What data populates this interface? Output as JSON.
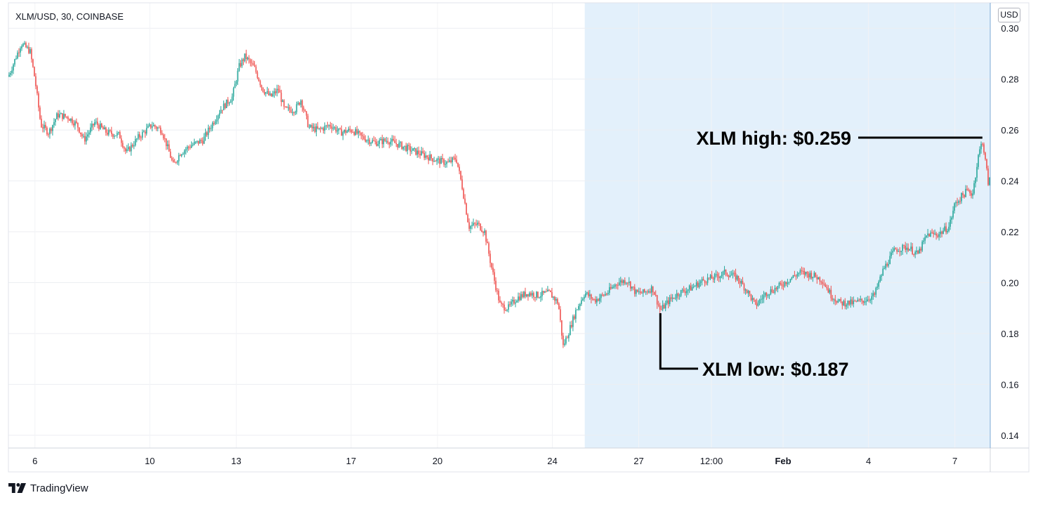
{
  "chart_header": {
    "title": "XLM/USD, 30, COINBASE"
  },
  "price_axis": {
    "currency": "USD"
  },
  "brand": {
    "name": "TradingView",
    "logo_icon": "tradingview-logo-icon"
  },
  "colors": {
    "up": "#26a69a",
    "down": "#ef5350",
    "highlight": "#e3f0fb",
    "annotation": "#000000"
  },
  "chart_data": {
    "type": "candlestick",
    "title": "XLM/USD, 30, COINBASE",
    "xlabel": "",
    "ylabel": "USD",
    "ylim": [
      0.135,
      0.31
    ],
    "yticks": [
      0.3,
      0.28,
      0.26,
      0.24,
      0.22,
      0.2,
      0.18,
      0.16,
      0.14
    ],
    "ytick_labels": [
      "0.30",
      "0.28",
      "0.26",
      "0.24",
      "0.22",
      "0.20",
      "0.18",
      "0.16",
      "0.14"
    ],
    "xlim": [
      0,
      100
    ],
    "xticks": [
      {
        "label": "6",
        "x": 2.7,
        "bold": false
      },
      {
        "label": "10",
        "x": 14.4,
        "bold": false
      },
      {
        "label": "13",
        "x": 23.2,
        "bold": false
      },
      {
        "label": "17",
        "x": 34.9,
        "bold": false
      },
      {
        "label": "20",
        "x": 43.7,
        "bold": false
      },
      {
        "label": "24",
        "x": 55.4,
        "bold": false
      },
      {
        "label": "27",
        "x": 64.2,
        "bold": false
      },
      {
        "label": "12:00",
        "x": 71.6,
        "bold": false
      },
      {
        "label": "Feb",
        "x": 78.9,
        "bold": true
      },
      {
        "label": "4",
        "x": 87.6,
        "bold": false
      },
      {
        "label": "7",
        "x": 96.4,
        "bold": false
      }
    ],
    "highlight_range": [
      58.7,
      100
    ],
    "grid": true,
    "legend": "none",
    "series": [
      {
        "points": [
          [
            0,
            0.281
          ],
          [
            0.8,
            0.289
          ],
          [
            1.3,
            0.294
          ],
          [
            2.2,
            0.291
          ],
          [
            2.7,
            0.28
          ],
          [
            3.3,
            0.262
          ],
          [
            4.1,
            0.259
          ],
          [
            5.0,
            0.266
          ],
          [
            6.1,
            0.265
          ],
          [
            7.0,
            0.262
          ],
          [
            7.7,
            0.256
          ],
          [
            8.8,
            0.263
          ],
          [
            10.0,
            0.259
          ],
          [
            11.3,
            0.258
          ],
          [
            12.0,
            0.251
          ],
          [
            13.2,
            0.257
          ],
          [
            14.6,
            0.262
          ],
          [
            15.6,
            0.26
          ],
          [
            16.3,
            0.252
          ],
          [
            16.8,
            0.246
          ],
          [
            17.5,
            0.251
          ],
          [
            18.6,
            0.254
          ],
          [
            19.8,
            0.256
          ],
          [
            20.7,
            0.262
          ],
          [
            21.6,
            0.268
          ],
          [
            22.8,
            0.273
          ],
          [
            23.5,
            0.285
          ],
          [
            24.1,
            0.289
          ],
          [
            25.1,
            0.284
          ],
          [
            25.9,
            0.276
          ],
          [
            26.7,
            0.273
          ],
          [
            27.5,
            0.276
          ],
          [
            28.1,
            0.268
          ],
          [
            29.2,
            0.268
          ],
          [
            29.8,
            0.272
          ],
          [
            30.6,
            0.261
          ],
          [
            31.6,
            0.26
          ],
          [
            32.8,
            0.262
          ],
          [
            33.8,
            0.259
          ],
          [
            35.0,
            0.26
          ],
          [
            36.1,
            0.257
          ],
          [
            37.4,
            0.255
          ],
          [
            38.6,
            0.256
          ],
          [
            39.9,
            0.254
          ],
          [
            41.1,
            0.252
          ],
          [
            42.4,
            0.25
          ],
          [
            43.7,
            0.248
          ],
          [
            44.8,
            0.247
          ],
          [
            45.6,
            0.249
          ],
          [
            46.2,
            0.238
          ],
          [
            46.9,
            0.222
          ],
          [
            47.8,
            0.223
          ],
          [
            48.5,
            0.22
          ],
          [
            49.1,
            0.208
          ],
          [
            49.6,
            0.199
          ],
          [
            50.1,
            0.191
          ],
          [
            50.9,
            0.19
          ],
          [
            51.8,
            0.194
          ],
          [
            52.9,
            0.196
          ],
          [
            53.9,
            0.195
          ],
          [
            55.1,
            0.196
          ],
          [
            56.0,
            0.192
          ],
          [
            56.5,
            0.175
          ],
          [
            57.1,
            0.181
          ],
          [
            57.8,
            0.189
          ],
          [
            58.7,
            0.196
          ],
          [
            59.7,
            0.193
          ],
          [
            61.0,
            0.196
          ],
          [
            62.0,
            0.2
          ],
          [
            63.0,
            0.201
          ],
          [
            63.9,
            0.196
          ],
          [
            64.7,
            0.196
          ],
          [
            65.6,
            0.198
          ],
          [
            66.4,
            0.189
          ],
          [
            67.3,
            0.193
          ],
          [
            68.3,
            0.196
          ],
          [
            69.6,
            0.198
          ],
          [
            70.8,
            0.201
          ],
          [
            71.9,
            0.202
          ],
          [
            73.0,
            0.204
          ],
          [
            74.2,
            0.202
          ],
          [
            75.2,
            0.197
          ],
          [
            76.1,
            0.191
          ],
          [
            77.2,
            0.196
          ],
          [
            78.3,
            0.198
          ],
          [
            79.4,
            0.201
          ],
          [
            80.6,
            0.204
          ],
          [
            81.9,
            0.203
          ],
          [
            82.9,
            0.201
          ],
          [
            83.8,
            0.195
          ],
          [
            84.7,
            0.192
          ],
          [
            86.0,
            0.192
          ],
          [
            87.1,
            0.193
          ],
          [
            88.2,
            0.195
          ],
          [
            89.1,
            0.205
          ],
          [
            90.3,
            0.213
          ],
          [
            91.6,
            0.214
          ],
          [
            92.6,
            0.211
          ],
          [
            93.6,
            0.219
          ],
          [
            94.7,
            0.219
          ],
          [
            95.8,
            0.222
          ],
          [
            96.4,
            0.231
          ],
          [
            97.6,
            0.236
          ],
          [
            98.2,
            0.235
          ],
          [
            98.8,
            0.25
          ],
          [
            99.2,
            0.256
          ],
          [
            99.6,
            0.245
          ],
          [
            99.8,
            0.239
          ],
          [
            100,
            0.241
          ]
        ]
      }
    ],
    "annotations": [
      {
        "text": "XLM high: $0.259",
        "x": 99.2,
        "y": 0.257
      },
      {
        "text": "XLM low: $0.187",
        "x": 66.4,
        "y": 0.188
      }
    ]
  }
}
